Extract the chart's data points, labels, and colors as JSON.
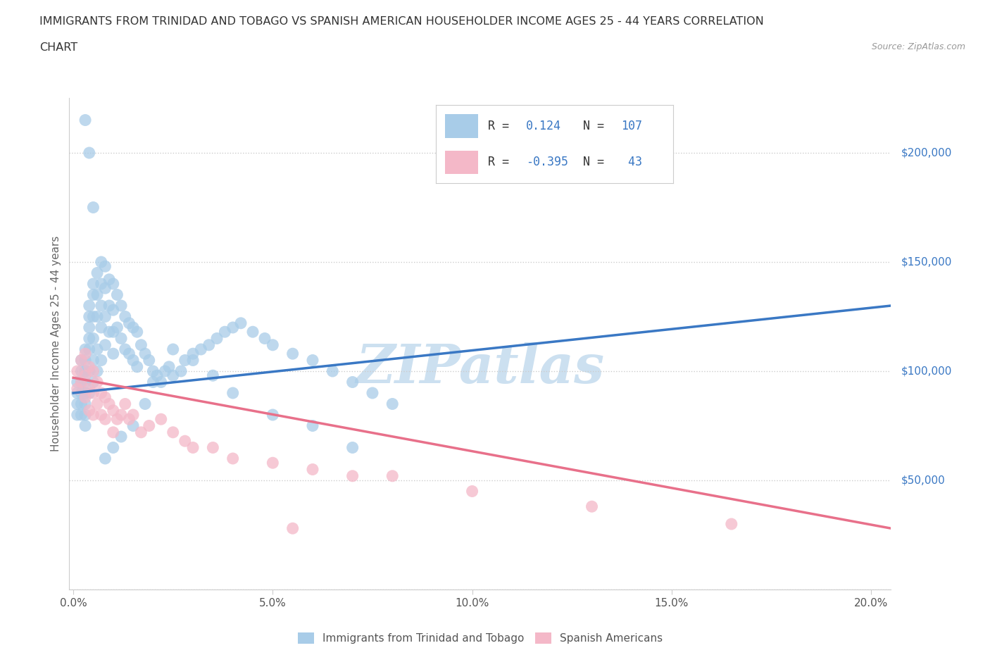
{
  "title_line1": "IMMIGRANTS FROM TRINIDAD AND TOBAGO VS SPANISH AMERICAN HOUSEHOLDER INCOME AGES 25 - 44 YEARS CORRELATION",
  "title_line2": "CHART",
  "source_text": "Source: ZipAtlas.com",
  "ylabel": "Householder Income Ages 25 - 44 years",
  "xlim": [
    -0.001,
    0.205
  ],
  "ylim": [
    0,
    225000
  ],
  "yticks": [
    0,
    50000,
    100000,
    150000,
    200000
  ],
  "ytick_labels": [
    "",
    "$50,000",
    "$100,000",
    "$150,000",
    "$200,000"
  ],
  "xticks": [
    0.0,
    0.05,
    0.1,
    0.15,
    0.2
  ],
  "xtick_labels": [
    "0.0%",
    "5.0%",
    "10.0%",
    "15.0%",
    "20.0%"
  ],
  "blue_color": "#a8cce8",
  "pink_color": "#f4b8c8",
  "blue_line_color": "#3a78c4",
  "pink_line_color": "#e8708a",
  "blue_dashed_color": "#7aaad8",
  "watermark": "ZIPatlas",
  "legend_label1": "Immigrants from Trinidad and Tobago",
  "legend_label2": "Spanish Americans",
  "blue_scatter_x": [
    0.001,
    0.001,
    0.001,
    0.001,
    0.002,
    0.002,
    0.002,
    0.002,
    0.002,
    0.002,
    0.003,
    0.003,
    0.003,
    0.003,
    0.003,
    0.003,
    0.003,
    0.003,
    0.004,
    0.004,
    0.004,
    0.004,
    0.004,
    0.004,
    0.004,
    0.005,
    0.005,
    0.005,
    0.005,
    0.005,
    0.005,
    0.006,
    0.006,
    0.006,
    0.006,
    0.006,
    0.007,
    0.007,
    0.007,
    0.007,
    0.007,
    0.008,
    0.008,
    0.008,
    0.008,
    0.009,
    0.009,
    0.009,
    0.01,
    0.01,
    0.01,
    0.01,
    0.011,
    0.011,
    0.012,
    0.012,
    0.013,
    0.013,
    0.014,
    0.014,
    0.015,
    0.015,
    0.016,
    0.016,
    0.017,
    0.018,
    0.019,
    0.02,
    0.021,
    0.022,
    0.023,
    0.024,
    0.025,
    0.027,
    0.028,
    0.03,
    0.032,
    0.034,
    0.036,
    0.038,
    0.04,
    0.042,
    0.045,
    0.048,
    0.05,
    0.055,
    0.06,
    0.065,
    0.07,
    0.075,
    0.08,
    0.02,
    0.025,
    0.018,
    0.015,
    0.012,
    0.01,
    0.008,
    0.03,
    0.035,
    0.04,
    0.05,
    0.06,
    0.07,
    0.003,
    0.004,
    0.005
  ],
  "blue_scatter_y": [
    95000,
    90000,
    85000,
    80000,
    100000,
    95000,
    90000,
    85000,
    105000,
    80000,
    110000,
    105000,
    100000,
    95000,
    90000,
    85000,
    80000,
    75000,
    130000,
    125000,
    120000,
    115000,
    110000,
    100000,
    90000,
    140000,
    135000,
    125000,
    115000,
    105000,
    95000,
    145000,
    135000,
    125000,
    110000,
    100000,
    150000,
    140000,
    130000,
    120000,
    105000,
    148000,
    138000,
    125000,
    112000,
    142000,
    130000,
    118000,
    140000,
    128000,
    118000,
    108000,
    135000,
    120000,
    130000,
    115000,
    125000,
    110000,
    122000,
    108000,
    120000,
    105000,
    118000,
    102000,
    112000,
    108000,
    105000,
    100000,
    98000,
    95000,
    100000,
    102000,
    98000,
    100000,
    105000,
    108000,
    110000,
    112000,
    115000,
    118000,
    120000,
    122000,
    118000,
    115000,
    112000,
    108000,
    105000,
    100000,
    95000,
    90000,
    85000,
    95000,
    110000,
    85000,
    75000,
    70000,
    65000,
    60000,
    105000,
    98000,
    90000,
    80000,
    75000,
    65000,
    215000,
    200000,
    175000
  ],
  "pink_scatter_x": [
    0.001,
    0.001,
    0.002,
    0.002,
    0.003,
    0.003,
    0.003,
    0.004,
    0.004,
    0.004,
    0.005,
    0.005,
    0.005,
    0.006,
    0.006,
    0.007,
    0.007,
    0.008,
    0.008,
    0.009,
    0.01,
    0.01,
    0.011,
    0.012,
    0.013,
    0.014,
    0.015,
    0.017,
    0.019,
    0.022,
    0.025,
    0.028,
    0.03,
    0.035,
    0.04,
    0.05,
    0.06,
    0.08,
    0.1,
    0.13,
    0.165,
    0.055,
    0.07
  ],
  "pink_scatter_y": [
    100000,
    92000,
    105000,
    95000,
    108000,
    98000,
    88000,
    102000,
    92000,
    82000,
    100000,
    90000,
    80000,
    95000,
    85000,
    90000,
    80000,
    88000,
    78000,
    85000,
    82000,
    72000,
    78000,
    80000,
    85000,
    78000,
    80000,
    72000,
    75000,
    78000,
    72000,
    68000,
    65000,
    65000,
    60000,
    58000,
    55000,
    52000,
    45000,
    38000,
    30000,
    28000,
    52000
  ],
  "blue_trend_x": [
    0.0,
    0.205
  ],
  "blue_trend_y": [
    90000,
    130000
  ],
  "pink_trend_x": [
    0.0,
    0.205
  ],
  "pink_trend_y": [
    97000,
    28000
  ],
  "grid_color": "#cccccc",
  "background_color": "#ffffff",
  "watermark_color": "#cce0f0",
  "watermark_fontsize": 55,
  "ytick_color": "#3a78c4",
  "title_fontsize": 11.5
}
